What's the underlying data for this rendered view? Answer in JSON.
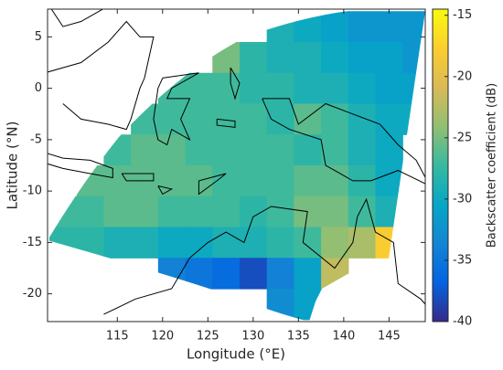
{
  "chart_data": {
    "type": "heatmap",
    "xlabel": "Longitude (°E)",
    "ylabel": "Latitude (°N)",
    "colorbar_label": "Backscatter coefficient (dB)",
    "colormap": "parula",
    "x": [
      109,
      112,
      115,
      118,
      121,
      124,
      127,
      130,
      133,
      136,
      139,
      142,
      145,
      148
    ],
    "y": [
      6,
      3,
      0,
      -3,
      -6,
      -9,
      -12,
      -15,
      -18,
      -21
    ],
    "values": [
      [
        null,
        null,
        null,
        null,
        null,
        null,
        null,
        null,
        -29,
        -30,
        -31,
        -32,
        -32,
        -32
      ],
      [
        null,
        null,
        null,
        null,
        null,
        null,
        -25,
        -28,
        -29,
        -29,
        -30,
        -31,
        -31,
        -32
      ],
      [
        null,
        null,
        null,
        null,
        -27,
        -27,
        -27,
        -28,
        -28,
        -29,
        -29,
        -30,
        -31,
        -31
      ],
      [
        null,
        null,
        null,
        -27,
        -27,
        -27,
        -27,
        -27,
        -28,
        -26,
        -27,
        -29,
        -30,
        -30
      ],
      [
        null,
        null,
        -27,
        -26,
        -26,
        -27,
        -27,
        -27,
        -27,
        -28,
        -27,
        -29,
        -30,
        null
      ],
      [
        null,
        -26,
        -26,
        -26,
        -26,
        -26,
        -27,
        -27,
        -27,
        -26,
        -26,
        -28,
        -30,
        null
      ],
      [
        -27,
        -27,
        -26,
        -26,
        -27,
        -27,
        -27,
        -28,
        -27,
        -25,
        -25,
        -27,
        -29,
        null
      ],
      [
        -28,
        -28,
        -29,
        -29,
        -30,
        -30,
        -29,
        -29,
        -28,
        -27,
        -24,
        -23,
        -18,
        null
      ],
      [
        null,
        null,
        null,
        null,
        -34,
        -35,
        -36,
        -38,
        -34,
        -31,
        -22,
        null,
        null,
        null
      ],
      [
        null,
        null,
        null,
        null,
        null,
        null,
        null,
        null,
        -33,
        -31,
        null,
        null,
        null,
        null
      ]
    ],
    "xlim": [
      107.3,
      149
    ],
    "ylim": [
      -22.7,
      7.7
    ],
    "xticks": [
      115,
      120,
      125,
      130,
      135,
      140,
      145
    ],
    "yticks": [
      -20,
      -15,
      -10,
      -5,
      0,
      5
    ],
    "clim": [
      -40,
      -14.5
    ],
    "cticks": [
      -40,
      -35,
      -30,
      -25,
      -20,
      -15
    ]
  }
}
